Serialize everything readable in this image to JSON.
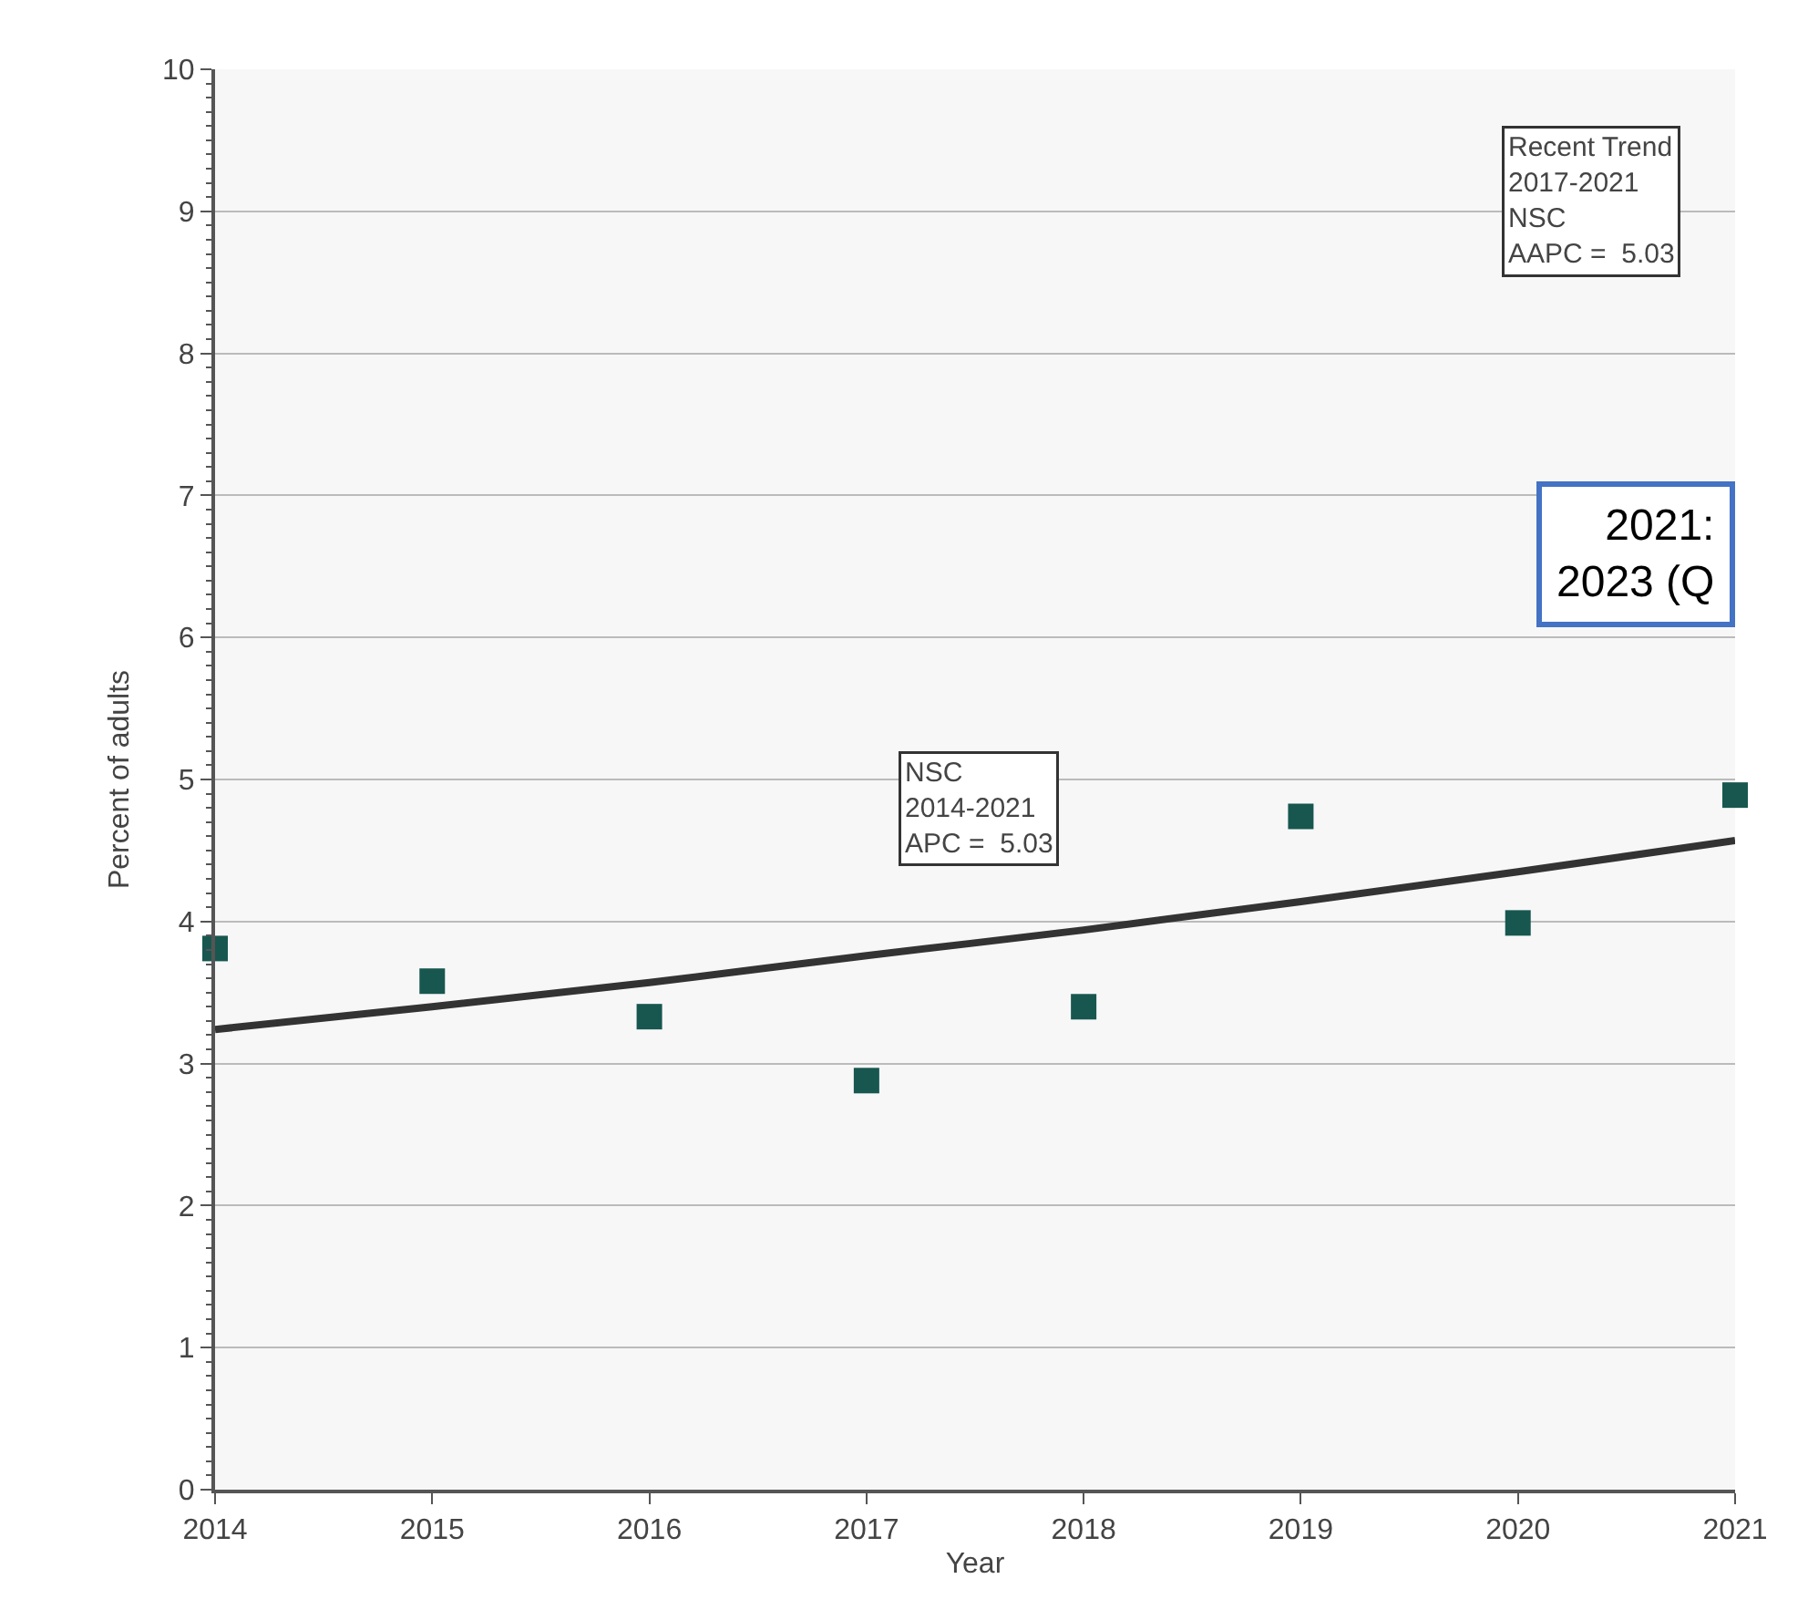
{
  "chart_data": {
    "type": "scatter",
    "xlabel": "Year",
    "ylabel": "Percent of adults",
    "x": [
      2014,
      2015,
      2016,
      2017,
      2018,
      2019,
      2020,
      2021
    ],
    "series": [
      {
        "color": "#17574f",
        "marker": "square",
        "values": [
          3.81,
          3.58,
          3.33,
          2.88,
          3.4,
          4.74,
          3.99,
          4.89
        ]
      },
      {
        "type": "line",
        "color": "#333333",
        "marker": "none",
        "values": [
          3.24,
          3.4,
          3.57,
          3.76,
          3.94,
          4.14,
          4.35,
          4.57
        ]
      }
    ],
    "xlim": [
      2014,
      2021
    ],
    "xticks": [
      2014,
      2015,
      2016,
      2017,
      2018,
      2019,
      2020,
      2021
    ],
    "ylim": [
      0,
      10
    ],
    "yticks": [
      0,
      1,
      2,
      3,
      4,
      5,
      6,
      7,
      8,
      9,
      10
    ],
    "grid": "y",
    "annotations": [
      "Recent Trend\n2017-2021\nNSC\nAAPC =  5.03",
      "NSC\n2014-2021\nAPC =  5.03",
      "2021:\n2023 (Q"
    ]
  }
}
